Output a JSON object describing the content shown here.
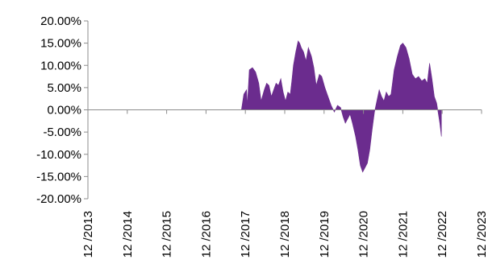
{
  "chart_data": {
    "type": "area",
    "title": "",
    "xlabel": "",
    "ylabel": "",
    "y_tick_labels": [
      "20.00%",
      "15.00%",
      "10.00%",
      "5.00%",
      "0.00%",
      "-5.00%",
      "-10.00%",
      "-15.00%",
      "-20.00%"
    ],
    "y_tick_values": [
      20,
      15,
      10,
      5,
      0,
      -5,
      -10,
      -15,
      -20
    ],
    "ylim": [
      -20,
      20
    ],
    "x_tick_labels": [
      "12 /2013",
      "12 /2014",
      "12 /2015",
      "12 /2016",
      "12 /2017",
      "12 /2018",
      "12 /2019",
      "12 /2020",
      "12 /2021",
      "12 /2022",
      "12 /2023"
    ],
    "x_tick_values": [
      2013.92,
      2014.92,
      2015.92,
      2016.92,
      2017.92,
      2018.92,
      2019.92,
      2020.92,
      2021.92,
      2022.92,
      2023.92
    ],
    "xlim": [
      2013.92,
      2023.92
    ],
    "grid": false,
    "fill_color": "#6b2c8e",
    "series": [
      {
        "x": [
          2017.82,
          2017.88,
          2017.95,
          2017.97,
          2018.02,
          2018.1,
          2018.18,
          2018.26,
          2018.32,
          2018.4,
          2018.46,
          2018.52,
          2018.58,
          2018.64,
          2018.7,
          2018.76,
          2018.82,
          2018.88,
          2018.94,
          2019.0,
          2019.06,
          2019.1,
          2019.14,
          2019.2,
          2019.26,
          2019.3,
          2019.34,
          2019.4,
          2019.46,
          2019.52,
          2019.6,
          2019.66,
          2019.72,
          2019.8,
          2019.86,
          2019.94,
          2020.02,
          2020.1,
          2020.18,
          2020.26,
          2020.34,
          2020.4,
          2020.46,
          2020.52,
          2020.58,
          2020.64,
          2020.72,
          2020.78,
          2020.84,
          2020.9,
          2020.96,
          2021.02,
          2021.08,
          2021.14,
          2021.2,
          2021.26,
          2021.32,
          2021.38,
          2021.44,
          2021.5,
          2021.56,
          2021.62,
          2021.7,
          2021.78,
          2021.86,
          2021.92,
          2022.0,
          2022.08,
          2022.16,
          2022.24,
          2022.32,
          2022.4,
          2022.48,
          2022.54,
          2022.6,
          2022.66,
          2022.72,
          2022.78,
          2022.86,
          2022.9
        ],
        "y": [
          0,
          3.5,
          4.5,
          1.0,
          9.0,
          9.5,
          8.5,
          6.0,
          2.0,
          4.5,
          6.0,
          5.5,
          3.0,
          4.5,
          6.0,
          5.5,
          7.0,
          4.0,
          2.0,
          4.0,
          3.5,
          6.5,
          10.0,
          13.0,
          15.5,
          15.0,
          14.0,
          13.0,
          11.0,
          14.0,
          12.0,
          9.5,
          5.5,
          8.0,
          7.5,
          5.0,
          3.0,
          1.0,
          -0.5,
          1.0,
          0.5,
          -1.5,
          -3.0,
          -2.0,
          -1.0,
          -3.0,
          -6.0,
          -9.0,
          -12.5,
          -14.0,
          -13.0,
          -12.0,
          -9.0,
          -4.5,
          -0.5,
          2.0,
          4.5,
          3.0,
          2.0,
          4.0,
          3.0,
          3.5,
          9.0,
          12.0,
          14.5,
          15.0,
          14.0,
          11.5,
          8.0,
          7.0,
          7.5,
          6.5,
          7.0,
          6.0,
          10.5,
          7.0,
          3.0,
          1.5,
          -3.0,
          -6.0
        ]
      }
    ]
  }
}
